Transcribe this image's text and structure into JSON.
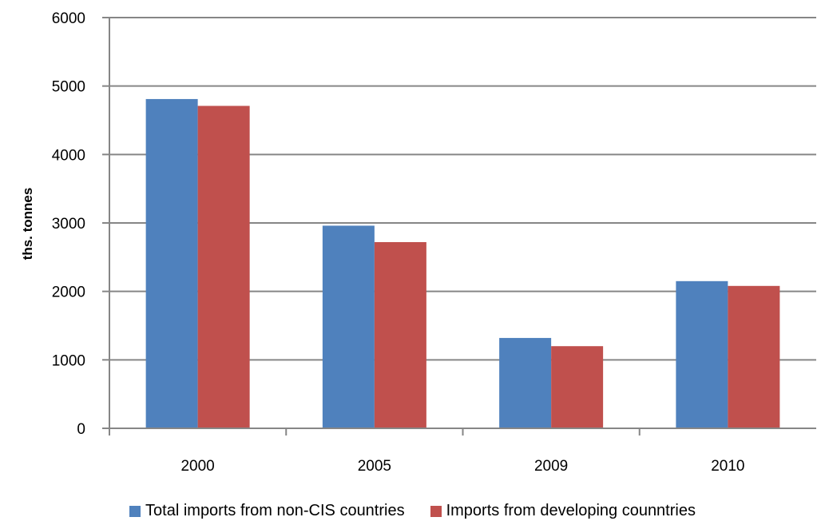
{
  "chart_data": {
    "type": "bar",
    "title": "",
    "xlabel": "",
    "ylabel": "ths. tonnes",
    "categories": [
      "2000",
      "2005",
      "2009",
      "2010"
    ],
    "series": [
      {
        "name": "Total imports from non-CIS countries",
        "color": "#4F81BD",
        "values": [
          4810,
          2960,
          1320,
          2150
        ]
      },
      {
        "name": "Imports from developing counntries",
        "color": "#C0504D",
        "values": [
          4710,
          2720,
          1200,
          2080
        ]
      }
    ],
    "ylim": [
      0,
      6000
    ],
    "yticks": [
      "0",
      "1000",
      "2000",
      "3000",
      "4000",
      "5000",
      "6000"
    ],
    "grid": true,
    "legend_position": "bottom"
  }
}
